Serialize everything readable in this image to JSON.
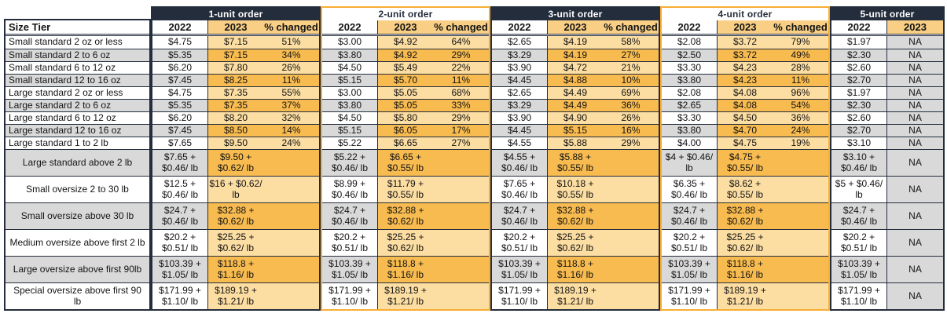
{
  "colors": {
    "navy": "#242d3c",
    "gray": "#d9d9d9",
    "amber_dark": "#f8bb4f",
    "amber_light": "#fcdda2",
    "amber_header": "#f9cf85",
    "amber_border": "#f8ad33"
  },
  "table": {
    "size_tier_header": "Size Tier",
    "year_2022": "2022",
    "year_2023": "2023",
    "pct_label": "% changed",
    "na_label": "NA",
    "size_tiers": [
      "Small standard 2 oz or less",
      "Small standard 2 to 6 oz",
      "Small standard 6 to 12 oz",
      "Small standard 12 to 16 oz",
      "Large standard 2 oz or less",
      "Large standard 2 to 6 oz",
      "Large standard 6 to 12 oz",
      "Large standard 12 to 16 oz",
      "Large standard 1 to 2 lb",
      "Large standard above 2 lb",
      "Small oversize 2 to 30 lb",
      "Small oversize above 30 lb",
      "Medium oversize above first 2 lb",
      "Large oversize above first 90lb",
      "Special oversize above first 90 lb"
    ],
    "groups": [
      {
        "title": "1-unit order",
        "y2022": [
          "$4.75",
          "$5.35",
          "$6.20",
          "$7.45",
          "$4.75",
          "$5.35",
          "$6.20",
          "$7.45",
          "$7.65",
          "$7.65 + $0.46/ lb",
          "$12.5 + $0.46/ lb",
          "$24.7 + $0.46/ lb",
          "$20.2 + $0.51/ lb",
          "$103.39 + $1.05/ lb",
          "$171.99 + $1.10/ lb"
        ],
        "y2023": [
          "$7.15",
          "$7.15",
          "$7.80",
          "$8.25",
          "$7.35",
          "$7.35",
          "$8.20",
          "$8.50",
          "$9.50",
          "$9.50 + $0.62/ lb",
          "$16 + $0.62/ lb",
          "$32.88 + $0.62/ lb",
          "$25.25 + $0.62/ lb",
          "$118.8 + $1.16/ lb",
          "$189.19 + $1.21/ lb"
        ],
        "pct": [
          "51%",
          "34%",
          "26%",
          "11%",
          "55%",
          "37%",
          "32%",
          "14%",
          "24%",
          "",
          "",
          "",
          "",
          "",
          ""
        ]
      },
      {
        "title": "2-unit order",
        "y2022": [
          "$3.00",
          "$3.80",
          "$4.50",
          "$5.15",
          "$3.00",
          "$3.80",
          "$4.50",
          "$5.15",
          "$5.22",
          "$5.22 + $0.46/ lb",
          "$8.99 + $0.46/ lb",
          "$24.7 + $0.46/ lb",
          "$20.2 + $0.51/ lb",
          "$103.39 + $1.05/ lb",
          "$171.99 + $1.10/ lb"
        ],
        "y2023": [
          "$4.92",
          "$4.92",
          "$5.49",
          "$5.70",
          "$5.05",
          "$5.05",
          "$5.80",
          "$6.05",
          "$6.65",
          "$6.65 + $0.55/ lb",
          "$11.79 + $0.55/ lb",
          "$32.88 + $0.62/ lb",
          "$25.25 + $0.62/ lb",
          "$118.8 + $1.16/ lb",
          "$189.19 + $1.21/ lb"
        ],
        "pct": [
          "64%",
          "29%",
          "22%",
          "11%",
          "68%",
          "33%",
          "29%",
          "17%",
          "27%",
          "",
          "",
          "",
          "",
          "",
          ""
        ]
      },
      {
        "title": "3-unit order",
        "y2022": [
          "$2.65",
          "$3.29",
          "$3.90",
          "$4.45",
          "$2.65",
          "$3.29",
          "$3.90",
          "$4.45",
          "$4.55",
          "$4.55 + $0.46/ lb",
          "$7.65 + $0.46/ lb",
          "$24.7 + $0.46/ lb",
          "$20.2 + $0.51/ lb",
          "$103.39 + $1.05/ lb",
          "$171.99 + $1.10/ lb"
        ],
        "y2023": [
          "$4.19",
          "$4.19",
          "$4.72",
          "$4.88",
          "$4.49",
          "$4.49",
          "$4.90",
          "$5.15",
          "$5.88",
          "$5.88 + $0.55/ lb",
          "$10.18 + $0.55/ lb",
          "$32.88 + $0.62/ lb",
          "$25.25 + $0.62/ lb",
          "$118.8 + $1.16/ lb",
          "$189.19 + $1.21/ lb"
        ],
        "pct": [
          "58%",
          "27%",
          "21%",
          "10%",
          "69%",
          "36%",
          "26%",
          "16%",
          "29%",
          "",
          "",
          "",
          "",
          "",
          ""
        ]
      },
      {
        "title": "4-unit order",
        "y2022": [
          "$2.08",
          "$2.50",
          "$3.30",
          "$3.80",
          "$2.08",
          "$2.65",
          "$3.30",
          "$3.80",
          "$4.00",
          "$4 + $0.46/ lb",
          "$6.35 + $0.46/ lb",
          "$24.7 + $0.46/ lb",
          "$20.2 + $0.51/ lb",
          "$103.39 + $1.05/ lb",
          "$171.99 + $1.10/ lb"
        ],
        "y2023": [
          "$3.72",
          "$3.72",
          "$4.23",
          "$4.23",
          "$4.08",
          "$4.08",
          "$4.50",
          "$4.70",
          "$4.75",
          "$4.75 + $0.55/ lb",
          "$8.62 + $0.55/ lb",
          "$32.88 + $0.62/ lb",
          "$25.25 + $0.62/ lb",
          "$118.8 + $1.16/ lb",
          "$189.19 + $1.21/ lb"
        ],
        "pct": [
          "79%",
          "49%",
          "28%",
          "11%",
          "96%",
          "54%",
          "36%",
          "24%",
          "19%",
          "",
          "",
          "",
          "",
          "",
          ""
        ]
      },
      {
        "title": "5-unit order",
        "y2022": [
          "$1.97",
          "$2.30",
          "$2.60",
          "$2.70",
          "$1.97",
          "$2.30",
          "$2.60",
          "$2.70",
          "$3.10",
          "$3.10 + $0.46/ lb",
          "$5 + $0.46/ lb",
          "$24.7 + $0.46/ lb",
          "$20.2 + $0.51/ lb",
          "$103.39 + $1.05/ lb",
          "$171.99 + $1.10/ lb"
        ],
        "y2023": [
          "NA",
          "NA",
          "NA",
          "NA",
          "NA",
          "NA",
          "NA",
          "NA",
          "NA",
          "NA",
          "NA",
          "NA",
          "NA",
          "NA",
          "NA"
        ],
        "pct": null
      }
    ]
  }
}
